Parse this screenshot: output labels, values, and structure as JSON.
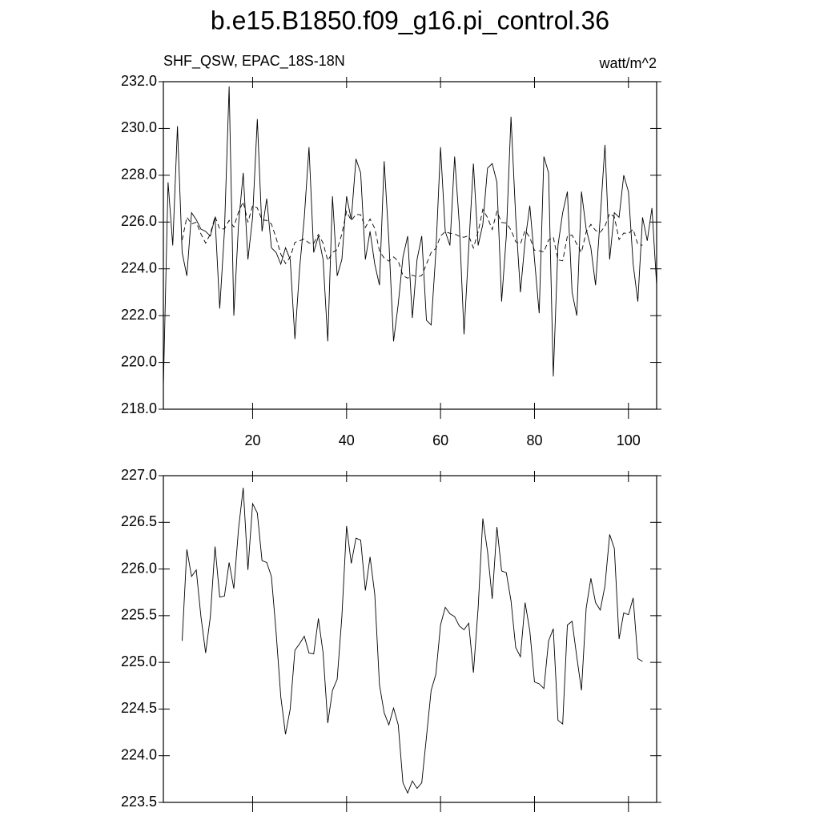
{
  "chart_data": [
    {
      "type": "line",
      "title": "b.e15.B1850.f09_g16.pi_control.36",
      "subtitle_left": "SHF_QSW, EPAC_18S-18N",
      "subtitle_right": "watt/m^2",
      "x": [
        1,
        2,
        3,
        4,
        5,
        6,
        7,
        8,
        9,
        10,
        11,
        12,
        13,
        14,
        15,
        16,
        17,
        18,
        19,
        20,
        21,
        22,
        23,
        24,
        25,
        26,
        27,
        28,
        29,
        30,
        31,
        32,
        33,
        34,
        35,
        36,
        37,
        38,
        39,
        40,
        41,
        42,
        43,
        44,
        45,
        46,
        47,
        48,
        49,
        50,
        51,
        52,
        53,
        54,
        55,
        56,
        57,
        58,
        59,
        60,
        61,
        62,
        63,
        64,
        65,
        66,
        67,
        68,
        69,
        70,
        71,
        72,
        73,
        74,
        75,
        76,
        77,
        78,
        79,
        80,
        81,
        82,
        83,
        84,
        85,
        86,
        87,
        88,
        89,
        90,
        91,
        92,
        93,
        94,
        95,
        96,
        97,
        98,
        99,
        100,
        101,
        102,
        103,
        104,
        105,
        106
      ],
      "series": [
        {
          "color": "#000000",
          "line_style": "solid",
          "values": [
            218.95,
            227.7,
            225.0,
            230.1,
            224.7,
            223.7,
            226.4,
            226.1,
            225.7,
            225.6,
            225.4,
            226.2,
            222.3,
            225.6,
            231.8,
            222.0,
            225.9,
            228.1,
            224.4,
            226.2,
            230.4,
            225.6,
            227.0,
            224.9,
            224.7,
            224.2,
            224.9,
            224.4,
            221.0,
            224.0,
            226.2,
            229.2,
            224.7,
            225.4,
            224.4,
            220.9,
            227.1,
            223.7,
            224.4,
            227.1,
            226.1,
            228.7,
            228.1,
            224.4,
            225.6,
            224.2,
            223.3,
            228.6,
            225.2,
            220.9,
            222.5,
            224.5,
            225.4,
            221.9,
            224.4,
            225.4,
            221.8,
            221.6,
            224.7,
            229.2,
            225.6,
            225.0,
            228.8,
            225.9,
            221.2,
            224.9,
            228.5,
            225.0,
            225.9,
            228.3,
            228.5,
            227.7,
            222.6,
            225.4,
            230.5,
            226.2,
            223.0,
            225.2,
            226.7,
            224.4,
            222.1,
            228.8,
            228.1,
            219.4,
            225.0,
            226.4,
            227.3,
            223.0,
            222.0,
            227.3,
            225.7,
            224.9,
            223.3,
            226.2,
            229.3,
            224.4,
            226.4,
            226.2,
            228.0,
            227.3,
            224.2,
            222.6,
            226.2,
            225.2,
            226.6,
            223.3
          ]
        },
        {
          "color": "#000000",
          "line_style": "dashed",
          "values": [
            null,
            null,
            null,
            null,
            225.23,
            226.21,
            225.92,
            225.99,
            225.49,
            225.1,
            225.49,
            226.24,
            225.7,
            225.71,
            226.07,
            225.79,
            226.43,
            226.87,
            225.99,
            226.7,
            226.6,
            226.09,
            226.07,
            225.92,
            225.32,
            224.63,
            224.23,
            224.5,
            225.13,
            225.2,
            225.28,
            225.1,
            225.09,
            225.47,
            225.1,
            224.35,
            224.7,
            224.82,
            225.49,
            226.46,
            226.06,
            226.33,
            226.31,
            225.77,
            226.13,
            225.73,
            224.76,
            224.46,
            224.33,
            224.51,
            224.33,
            223.71,
            223.6,
            223.73,
            223.65,
            223.71,
            224.2,
            224.7,
            224.87,
            225.4,
            225.59,
            225.52,
            225.49,
            225.39,
            225.35,
            225.42,
            224.89,
            225.58,
            226.54,
            226.19,
            225.68,
            226.45,
            225.98,
            225.96,
            225.66,
            225.16,
            225.06,
            225.64,
            225.34,
            224.79,
            224.77,
            224.72,
            225.23,
            225.36,
            224.38,
            224.34,
            225.4,
            225.44,
            225.06,
            224.7,
            225.58,
            225.9,
            225.64,
            225.56,
            225.82,
            226.37,
            226.22,
            225.25,
            225.53,
            225.51,
            225.69,
            225.04,
            225.01,
            null,
            null,
            null
          ]
        }
      ],
      "xlim": [
        1,
        106
      ],
      "xticks": [
        20,
        40,
        60,
        80,
        100
      ],
      "show_xtick_labels": true,
      "ylim": [
        218,
        232
      ],
      "yticks": [
        {
          "value": 218,
          "label": "218.0"
        },
        {
          "value": 220,
          "label": "220.0"
        },
        {
          "value": 222,
          "label": "222.0"
        },
        {
          "value": 224,
          "label": "224.0"
        },
        {
          "value": 226,
          "label": "226.0"
        },
        {
          "value": 228,
          "label": "228.0"
        },
        {
          "value": 230,
          "label": "230.0"
        },
        {
          "value": 232,
          "label": "232.0"
        }
      ]
    },
    {
      "type": "line",
      "x": [
        1,
        2,
        3,
        4,
        5,
        6,
        7,
        8,
        9,
        10,
        11,
        12,
        13,
        14,
        15,
        16,
        17,
        18,
        19,
        20,
        21,
        22,
        23,
        24,
        25,
        26,
        27,
        28,
        29,
        30,
        31,
        32,
        33,
        34,
        35,
        36,
        37,
        38,
        39,
        40,
        41,
        42,
        43,
        44,
        45,
        46,
        47,
        48,
        49,
        50,
        51,
        52,
        53,
        54,
        55,
        56,
        57,
        58,
        59,
        60,
        61,
        62,
        63,
        64,
        65,
        66,
        67,
        68,
        69,
        70,
        71,
        72,
        73,
        74,
        75,
        76,
        77,
        78,
        79,
        80,
        81,
        82,
        83,
        84,
        85,
        86,
        87,
        88,
        89,
        90,
        91,
        92,
        93,
        94,
        95,
        96,
        97,
        98,
        99,
        100,
        101,
        102,
        103,
        104,
        105,
        106
      ],
      "series": [
        {
          "color": "#000000",
          "line_style": "solid",
          "values": [
            null,
            null,
            null,
            null,
            225.23,
            226.21,
            225.92,
            225.99,
            225.49,
            225.1,
            225.49,
            226.24,
            225.7,
            225.71,
            226.07,
            225.79,
            226.43,
            226.87,
            225.99,
            226.7,
            226.6,
            226.09,
            226.07,
            225.92,
            225.32,
            224.63,
            224.23,
            224.5,
            225.13,
            225.2,
            225.28,
            225.1,
            225.09,
            225.47,
            225.1,
            224.35,
            224.7,
            224.82,
            225.49,
            226.46,
            226.06,
            226.33,
            226.31,
            225.77,
            226.13,
            225.73,
            224.76,
            224.46,
            224.33,
            224.51,
            224.33,
            223.71,
            223.6,
            223.73,
            223.65,
            223.71,
            224.2,
            224.7,
            224.87,
            225.4,
            225.59,
            225.52,
            225.49,
            225.39,
            225.35,
            225.42,
            224.89,
            225.58,
            226.54,
            226.19,
            225.68,
            226.45,
            225.98,
            225.96,
            225.66,
            225.16,
            225.06,
            225.64,
            225.34,
            224.79,
            224.77,
            224.72,
            225.23,
            225.36,
            224.38,
            224.34,
            225.4,
            225.44,
            225.06,
            224.7,
            225.58,
            225.9,
            225.64,
            225.56,
            225.82,
            226.37,
            226.22,
            225.25,
            225.53,
            225.51,
            225.69,
            225.04,
            225.01,
            null,
            null,
            null
          ]
        }
      ],
      "xlim": [
        1,
        106
      ],
      "xticks": [
        20,
        40,
        60,
        80,
        100
      ],
      "show_xtick_labels": false,
      "ylim": [
        223.5,
        227
      ],
      "yticks": [
        {
          "value": 223.5,
          "label": "223.5"
        },
        {
          "value": 224,
          "label": "224.0"
        },
        {
          "value": 224.5,
          "label": "224.5"
        },
        {
          "value": 225,
          "label": "225.0"
        },
        {
          "value": 225.5,
          "label": "225.5"
        },
        {
          "value": 226,
          "label": "226.0"
        },
        {
          "value": 226.5,
          "label": "226.5"
        },
        {
          "value": 227,
          "label": "227.0"
        }
      ]
    }
  ]
}
